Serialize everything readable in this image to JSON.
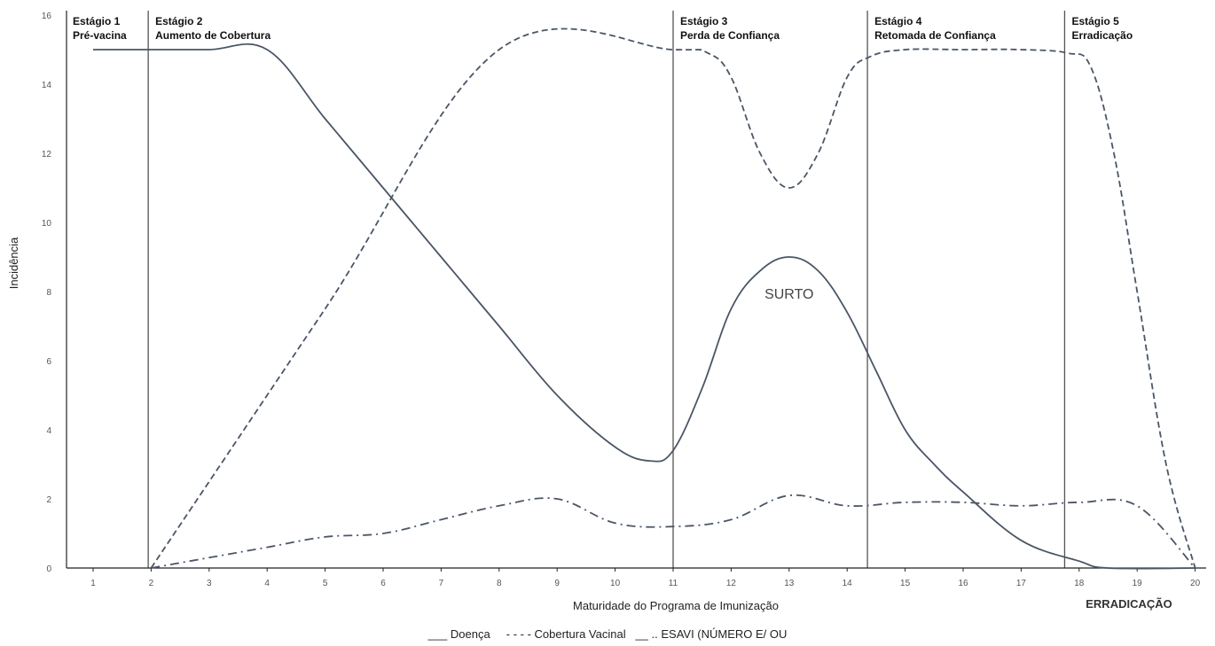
{
  "chart_data": {
    "type": "line",
    "title": "",
    "xlabel": "Maturidade do Programa de Imunização",
    "ylabel": "Incidência",
    "xlim": [
      1,
      20
    ],
    "ylim": [
      0,
      16
    ],
    "x_ticks": [
      1,
      2,
      3,
      4,
      5,
      6,
      7,
      8,
      9,
      10,
      11,
      12,
      13,
      14,
      15,
      16,
      17,
      18,
      19,
      20
    ],
    "y_ticks": [
      0,
      2,
      4,
      6,
      8,
      10,
      12,
      14,
      16
    ],
    "grid": false,
    "series": [
      {
        "name": "Doença",
        "style": "solid",
        "color": "#4a5666",
        "x": [
          1,
          2,
          3,
          4,
          5,
          6,
          7,
          8,
          9,
          10,
          10.6,
          11,
          11.5,
          12,
          12.5,
          13,
          13.5,
          14,
          14.5,
          15,
          15.5,
          16,
          17,
          18,
          18.5,
          20
        ],
        "y": [
          15,
          15,
          15,
          15,
          13,
          11,
          9,
          7,
          5,
          3.5,
          3.1,
          3.4,
          5.2,
          7.5,
          8.6,
          9,
          8.6,
          7.4,
          5.7,
          4,
          3,
          2.2,
          0.8,
          0.2,
          0,
          0
        ]
      },
      {
        "name": "Cobertura Vacinal",
        "style": "dashed",
        "color": "#4a5666",
        "x": [
          2,
          5,
          8,
          11,
          11.6,
          12,
          12.5,
          13,
          13.5,
          14,
          14.4,
          15,
          16,
          17,
          17.8,
          18.2,
          18.6,
          19,
          19.5,
          20
        ],
        "y": [
          0,
          7.5,
          15,
          15,
          14.9,
          14.2,
          12,
          11,
          12,
          14.2,
          14.8,
          15,
          15,
          15,
          14.9,
          14.5,
          12,
          8,
          3,
          0
        ]
      },
      {
        "name": "ESAVI (NÚMERO E/ OU",
        "style": "dashdot",
        "color": "#4a5666",
        "x": [
          2,
          3,
          4,
          5,
          6,
          7,
          8,
          9,
          10,
          11,
          12,
          13,
          14,
          15,
          16,
          17,
          18,
          19,
          20
        ],
        "y": [
          0,
          0.3,
          0.6,
          0.9,
          1,
          1.4,
          1.8,
          2,
          1.3,
          1.2,
          1.4,
          2.1,
          1.8,
          1.9,
          1.9,
          1.8,
          1.9,
          1.8,
          0
        ]
      }
    ],
    "stages": [
      {
        "x": 1.95,
        "number": "Estágio 1",
        "name": "Pré-vacina",
        "line": false
      },
      {
        "x": 1.95,
        "number": "Estágio 2",
        "name": "Aumento de Cobertura",
        "line": true
      },
      {
        "x": 11,
        "number": "Estágio 3",
        "name": "Perda de Confiança",
        "line": true
      },
      {
        "x": 14.35,
        "number": "Estágio 4",
        "name": "Retomada de Confiança",
        "line": true
      },
      {
        "x": 17.75,
        "number": "Estágio 5",
        "name": "Erradicação",
        "line": true
      }
    ],
    "annotations": [
      {
        "text": "SURTO",
        "x": 13,
        "y": 7.8
      }
    ],
    "x_extra_label": "ERRADICAÇÃO"
  },
  "legend": {
    "text": "___ Doença     - - - - Cobertura Vacinal   __ .. ESAVI (NÚMERO E/ OU"
  }
}
